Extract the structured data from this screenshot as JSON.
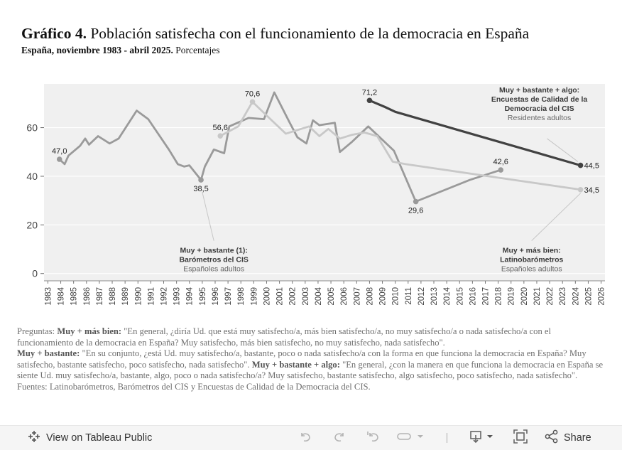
{
  "title": {
    "bold": "Gráfico 4.",
    "text": "Población satisfecha con el funcionamiento de la democracia en España"
  },
  "subtitle": {
    "bold": "España, noviembre 1983 - abril 2025.",
    "text": "Porcentajes"
  },
  "chart_data": {
    "type": "line",
    "xlim": [
      1982.7,
      2026.3
    ],
    "ylim": [
      -3,
      78
    ],
    "yticks": [
      0,
      20,
      40,
      60
    ],
    "xticks": [
      "1983",
      "1984",
      "1985",
      "1986",
      "1987",
      "1988",
      "1989",
      "1990",
      "1991",
      "1992",
      "1993",
      "1994",
      "1995",
      "1996",
      "1997",
      "1998",
      "1999",
      "2000",
      "2001",
      "2002",
      "2003",
      "2004",
      "2005",
      "2006",
      "2007",
      "2008",
      "2009",
      "2010",
      "2011",
      "2012",
      "2013",
      "2014",
      "2015",
      "2016",
      "2017",
      "2018",
      "2019",
      "2020",
      "2021",
      "2022",
      "2023",
      "2024",
      "2025",
      "2026"
    ],
    "grid": true,
    "series": [
      {
        "key": "cis",
        "color": "#9a9a9a",
        "points": [
          [
            1983.9,
            47.0
          ],
          [
            1984.3,
            45.0
          ],
          [
            1984.6,
            48.5
          ],
          [
            1985.5,
            52.5
          ],
          [
            1985.9,
            55.5
          ],
          [
            1986.2,
            53.0
          ],
          [
            1986.9,
            56.5
          ],
          [
            1987.8,
            53.5
          ],
          [
            1988.5,
            55.5
          ],
          [
            1989.9,
            67.0
          ],
          [
            1990.8,
            63.5
          ],
          [
            1992.4,
            51.0
          ],
          [
            1993.1,
            45.0
          ],
          [
            1993.6,
            44.0
          ],
          [
            1994.0,
            44.5
          ],
          [
            1994.9,
            38.5
          ],
          [
            1995.2,
            44.0
          ],
          [
            1995.9,
            51.0
          ],
          [
            1996.7,
            49.5
          ],
          [
            1997.1,
            60.5
          ],
          [
            1998.6,
            64.0
          ],
          [
            1999.8,
            63.5
          ],
          [
            2000.6,
            74.5
          ],
          [
            2001.8,
            62.0
          ],
          [
            2002.4,
            56.0
          ],
          [
            2003.1,
            53.5
          ],
          [
            2003.6,
            63.0
          ],
          [
            2004.1,
            61.0
          ],
          [
            2005.3,
            62.0
          ],
          [
            2005.7,
            50.0
          ],
          [
            2006.6,
            54.0
          ],
          [
            2007.9,
            60.5
          ],
          [
            2009.9,
            50.5
          ],
          [
            2011.6,
            29.6
          ],
          [
            2015.8,
            38.5
          ],
          [
            2018.2,
            42.6
          ]
        ]
      },
      {
        "key": "latino",
        "color": "#c8c8c8",
        "points": [
          [
            1996.4,
            56.6
          ],
          [
            1997.8,
            60.5
          ],
          [
            1998.9,
            70.6
          ],
          [
            2000.2,
            64.0
          ],
          [
            2001.5,
            57.5
          ],
          [
            2003.3,
            60.5
          ],
          [
            2004.1,
            56.5
          ],
          [
            2004.8,
            59.5
          ],
          [
            2005.7,
            55.5
          ],
          [
            2006.6,
            57.0
          ],
          [
            2007.6,
            58.0
          ],
          [
            2008.6,
            56.5
          ],
          [
            2009.8,
            46.0
          ],
          [
            2010.8,
            45.0
          ],
          [
            2024.4,
            34.5
          ]
        ]
      },
      {
        "key": "calidad",
        "color": "#424242",
        "points": [
          [
            2008.0,
            71.2
          ],
          [
            2009.2,
            68.5
          ],
          [
            2010.0,
            66.5
          ],
          [
            2024.4,
            44.5
          ]
        ]
      }
    ],
    "point_labels": [
      {
        "text": "47,0",
        "x": 1983.9,
        "y": 47.0,
        "pos": "above"
      },
      {
        "text": "38,5",
        "x": 1994.9,
        "y": 38.5,
        "pos": "below"
      },
      {
        "text": "56,6",
        "x": 1996.4,
        "y": 56.6,
        "pos": "above"
      },
      {
        "text": "70,6",
        "x": 1998.9,
        "y": 70.6,
        "pos": "above"
      },
      {
        "text": "71,2",
        "x": 2008.0,
        "y": 71.2,
        "pos": "above"
      },
      {
        "text": "42,6",
        "x": 2018.2,
        "y": 42.6,
        "pos": "above"
      },
      {
        "text": "29,6",
        "x": 2011.6,
        "y": 29.6,
        "pos": "below"
      },
      {
        "text": "44,5",
        "x": 2024.4,
        "y": 44.5,
        "pos": "right"
      },
      {
        "text": "34,5",
        "x": 2024.4,
        "y": 34.5,
        "pos": "right"
      }
    ],
    "annotations": [
      {
        "key": "cis",
        "lines": [
          "Muy + bastante (1):",
          "Barómetros del CIS",
          "Españoles adultos"
        ],
        "x": 1995.9,
        "y": 8.5,
        "from": [
          1995.0,
          33.5
        ],
        "to": [
          1995.9,
          13.5
        ]
      },
      {
        "key": "latino",
        "lines": [
          "Muy + más bien:",
          "Latinobarómetros",
          "Españoles adultos"
        ],
        "x": 2020.6,
        "y": 8.5,
        "from": [
          2024.4,
          33.0
        ],
        "to": [
          2020.6,
          13.5
        ]
      },
      {
        "key": "calidad",
        "lines": [
          "Muy + bastante + algo:",
          "Encuestas de Calidad de la",
          "Democracia del CIS",
          "Residentes adultos"
        ],
        "x": 2021.2,
        "y": 74.5,
        "from": [
          2021.8,
          55.5
        ],
        "to": [
          2024.2,
          46.0
        ]
      }
    ]
  },
  "notes": {
    "p1_pre": "Preguntas: ",
    "p1_bold": "Muy + más bien:",
    "p1_text": " \"En general, ¿diría Ud. que está muy satisfecho/a, más bien satisfecho/a, no muy satisfecho/a o nada satisfecho/a con el funcionamiento de la democracia en España? Muy satisfecho, más bien satisfecho, no muy satisfecho, nada satisfecho\".",
    "p2_bold": "Muy + bastante:",
    "p2_text": " \"En su conjunto, ¿está Ud. muy satisfecho/a, bastante, poco o nada satisfecho/a con la forma en que funciona la democracia en España? Muy satisfecho, bastante satisfecho, poco satisfecho, nada satisfecho\". ",
    "p2_bold2": "Muy + bastante + algo:",
    "p2_text2": " \"En general, ¿con la manera en que funciona la democracia en España se siente Ud. muy satisfecho/a, bastante, algo, poco o nada satisfecho/a? Muy satisfecho, bastante satisfecho, algo satisfecho, poco satisfecho, nada satisfecho\".",
    "p3": "Fuentes: Latinobarómetros, Barómetros del CIS y Encuestas de Calidad de la Democracia del CIS."
  },
  "toolbar": {
    "view_label": "View on Tableau Public",
    "share_label": "Share"
  },
  "icons": {
    "tableau": "tableau-logo-icon",
    "undo": "undo-icon",
    "redo": "redo-icon",
    "revert": "revert-icon",
    "pause": "pause-icon",
    "download": "download-icon",
    "fullscreen": "fullscreen-icon",
    "share": "share-icon"
  }
}
